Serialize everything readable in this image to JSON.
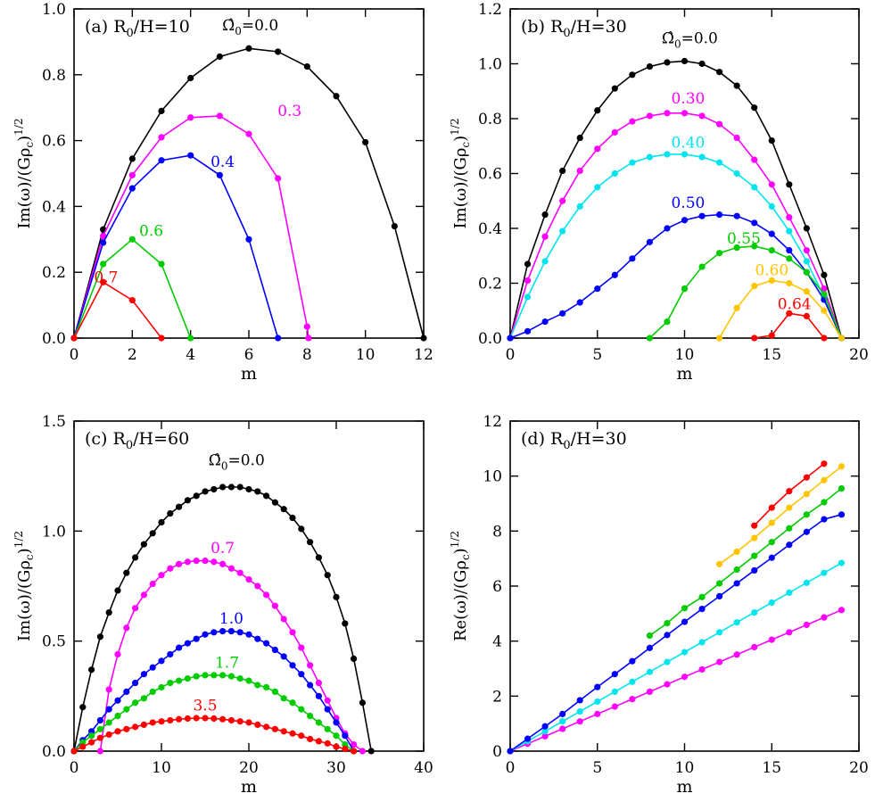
{
  "chart_data": [
    {
      "type": "line",
      "panel_label": "(a) R",
      "ratio_sub": "0",
      "ratio_rest": "/H=10",
      "xlabel": "m",
      "ylabel": "Im(ω)/(Gρc)1/2",
      "xlim": [
        0,
        12
      ],
      "ylim": [
        0,
        1.0
      ],
      "xticks": [
        "0",
        "2",
        "4",
        "6",
        "8",
        "10",
        "12"
      ],
      "yticks": [
        "0.0",
        "0.2",
        "0.4",
        "0.6",
        "0.8",
        "1.0"
      ],
      "series": [
        {
          "name": "Ω̂0=0.0",
          "label_main": "Ω̂",
          "label_sub": "0",
          "label_rest": "=0.0",
          "color": "#000000",
          "x": [
            0,
            1,
            2,
            3,
            4,
            5,
            6,
            7,
            8,
            9,
            10,
            11,
            12
          ],
          "y": [
            0,
            0.33,
            0.545,
            0.69,
            0.79,
            0.855,
            0.88,
            0.87,
            0.825,
            0.735,
            0.595,
            0.34,
            0
          ]
        },
        {
          "name": "0.3",
          "label_main": "0.3",
          "color": "#ff00ff",
          "x": [
            0,
            1,
            2,
            3,
            4,
            5,
            6,
            7,
            8,
            8.05
          ],
          "y": [
            0,
            0.31,
            0.495,
            0.61,
            0.67,
            0.675,
            0.62,
            0.485,
            0.035,
            0
          ]
        },
        {
          "name": "0.4",
          "label_main": "0.4",
          "color": "#0000ff",
          "x": [
            0,
            1,
            2,
            3,
            4,
            5,
            6,
            7
          ],
          "y": [
            0,
            0.29,
            0.455,
            0.54,
            0.555,
            0.495,
            0.3,
            0
          ]
        },
        {
          "name": "0.6",
          "label_main": "0.6",
          "color": "#00cc00",
          "x": [
            0,
            1,
            2,
            3,
            4
          ],
          "y": [
            0,
            0.225,
            0.3,
            0.225,
            0
          ]
        },
        {
          "name": "0.7",
          "label_main": "0.7",
          "color": "#ff0000",
          "x": [
            0,
            1,
            2,
            3
          ],
          "y": [
            0,
            0.17,
            0.115,
            0
          ]
        }
      ]
    },
    {
      "type": "line",
      "panel_label": "(b) R",
      "ratio_sub": "0",
      "ratio_rest": "/H=30",
      "xlabel": "m",
      "ylabel": "Im(ω)/(Gρc)1/2",
      "xlim": [
        0,
        20
      ],
      "ylim": [
        0,
        1.2
      ],
      "xticks": [
        "0",
        "5",
        "10",
        "15",
        "20"
      ],
      "yticks": [
        "0.0",
        "0.2",
        "0.4",
        "0.6",
        "0.8",
        "1.0",
        "1.2"
      ],
      "series": [
        {
          "name": "Ω̂0=0.0",
          "label_main": "Ω̂",
          "label_sub": "0",
          "label_rest": "=0.0",
          "color": "#000000",
          "x": [
            0,
            1,
            2,
            3,
            4,
            5,
            6,
            7,
            8,
            9,
            10,
            11,
            12,
            13,
            14,
            15,
            16,
            17,
            18,
            19
          ],
          "y": [
            0,
            0.27,
            0.45,
            0.61,
            0.73,
            0.83,
            0.91,
            0.96,
            0.99,
            1.005,
            1.01,
            1.0,
            0.97,
            0.92,
            0.84,
            0.72,
            0.56,
            0.4,
            0.23,
            0
          ]
        },
        {
          "name": "0.30",
          "label_main": "0.30",
          "color": "#ff00ff",
          "x": [
            0,
            1,
            2,
            3,
            4,
            5,
            6,
            7,
            8,
            9,
            10,
            11,
            12,
            13,
            14,
            15,
            16,
            17,
            18,
            19
          ],
          "y": [
            0,
            0.21,
            0.37,
            0.5,
            0.61,
            0.69,
            0.75,
            0.79,
            0.81,
            0.82,
            0.82,
            0.81,
            0.78,
            0.73,
            0.65,
            0.56,
            0.44,
            0.32,
            0.18,
            0
          ]
        },
        {
          "name": "0.40",
          "label_main": "0.40",
          "color": "#00e5ee",
          "x": [
            0,
            1,
            2,
            3,
            4,
            5,
            6,
            7,
            8,
            9,
            10,
            11,
            12,
            13,
            14,
            15,
            16,
            17,
            18,
            19
          ],
          "y": [
            0,
            0.15,
            0.28,
            0.39,
            0.48,
            0.55,
            0.6,
            0.64,
            0.66,
            0.67,
            0.67,
            0.66,
            0.64,
            0.6,
            0.55,
            0.48,
            0.39,
            0.28,
            0.15,
            0
          ]
        },
        {
          "name": "0.50",
          "label_main": "0.50",
          "color": "#0000ff",
          "x": [
            0,
            1,
            2,
            3,
            4,
            5,
            6,
            7,
            8,
            9,
            10,
            11,
            12,
            13,
            14,
            15,
            16,
            17,
            18,
            19
          ],
          "y": [
            0,
            0.025,
            0.06,
            0.09,
            0.13,
            0.18,
            0.23,
            0.29,
            0.35,
            0.4,
            0.43,
            0.445,
            0.45,
            0.445,
            0.42,
            0.38,
            0.32,
            0.24,
            0.14,
            0
          ]
        },
        {
          "name": "0.55",
          "label_main": "0.55",
          "color": "#00cc00",
          "x": [
            8,
            9,
            10,
            11,
            12,
            13,
            14,
            15,
            16,
            17,
            18,
            19
          ],
          "y": [
            0,
            0.06,
            0.18,
            0.26,
            0.31,
            0.33,
            0.335,
            0.32,
            0.29,
            0.24,
            0.16,
            0
          ]
        },
        {
          "name": "0.60",
          "label_main": "0.60",
          "color": "#ffc400",
          "x": [
            12,
            13,
            14,
            15,
            16,
            17,
            18,
            19
          ],
          "y": [
            0,
            0.11,
            0.19,
            0.21,
            0.2,
            0.17,
            0.1,
            0
          ]
        },
        {
          "name": "0.64",
          "label_main": "0.64",
          "color": "#ff0000",
          "x": [
            14,
            15,
            16,
            17,
            18
          ],
          "y": [
            0,
            0.01,
            0.09,
            0.08,
            0
          ]
        }
      ]
    },
    {
      "type": "line",
      "panel_label": "(c) R",
      "ratio_sub": "0",
      "ratio_rest": "/H=60",
      "xlabel": "m",
      "ylabel": "Im(ω)/(Gρc)1/2",
      "xlim": [
        0,
        40
      ],
      "ylim": [
        0,
        1.5
      ],
      "xticks": [
        "0",
        "10",
        "20",
        "30",
        "40"
      ],
      "yticks": [
        "0.0",
        "0.5",
        "1.0",
        "1.5"
      ],
      "series": [
        {
          "name": "Ω̂0=0.0",
          "label_main": "Ω̂",
          "label_sub": "0",
          "label_rest": "=0.0",
          "color": "#000000",
          "x": [
            0,
            1,
            2,
            3,
            4,
            5,
            6,
            7,
            8,
            9,
            10,
            11,
            12,
            13,
            14,
            15,
            16,
            17,
            18,
            19,
            20,
            21,
            22,
            23,
            24,
            25,
            26,
            27,
            28,
            29,
            30,
            31,
            32,
            33,
            34
          ],
          "y": [
            0,
            0.2,
            0.37,
            0.52,
            0.63,
            0.73,
            0.81,
            0.88,
            0.94,
            0.99,
            1.04,
            1.08,
            1.11,
            1.14,
            1.16,
            1.18,
            1.19,
            1.2,
            1.2,
            1.2,
            1.19,
            1.18,
            1.16,
            1.13,
            1.1,
            1.06,
            1.01,
            0.95,
            0.88,
            0.8,
            0.7,
            0.58,
            0.42,
            0.22,
            0
          ]
        },
        {
          "name": "0.7",
          "label_main": "0.7",
          "color": "#ff00ff",
          "x": [
            3,
            4,
            5,
            6,
            7,
            8,
            9,
            10,
            11,
            12,
            13,
            14,
            15,
            16,
            17,
            18,
            19,
            20,
            21,
            22,
            23,
            24,
            25,
            26,
            27,
            28,
            29,
            30,
            31,
            32,
            33
          ],
          "y": [
            0,
            0.28,
            0.44,
            0.56,
            0.65,
            0.71,
            0.76,
            0.8,
            0.83,
            0.85,
            0.86,
            0.865,
            0.865,
            0.86,
            0.85,
            0.83,
            0.81,
            0.78,
            0.75,
            0.71,
            0.66,
            0.6,
            0.54,
            0.47,
            0.39,
            0.31,
            0.23,
            0.15,
            0.08,
            0.03,
            0
          ]
        },
        {
          "name": "1.0",
          "label_main": "1.0",
          "color": "#0000ff",
          "x": [
            0,
            1,
            2,
            3,
            4,
            5,
            6,
            7,
            8,
            9,
            10,
            11,
            12,
            13,
            14,
            15,
            16,
            17,
            18,
            19,
            20,
            21,
            22,
            23,
            24,
            25,
            26,
            27,
            28,
            29,
            30,
            31,
            32
          ],
          "y": [
            0,
            0.05,
            0.09,
            0.14,
            0.19,
            0.23,
            0.27,
            0.31,
            0.35,
            0.38,
            0.41,
            0.44,
            0.47,
            0.49,
            0.51,
            0.53,
            0.54,
            0.545,
            0.545,
            0.54,
            0.53,
            0.51,
            0.49,
            0.46,
            0.43,
            0.39,
            0.35,
            0.3,
            0.25,
            0.19,
            0.13,
            0.07,
            0
          ]
        },
        {
          "name": "1.7",
          "label_main": "1.7",
          "color": "#00cc00",
          "x": [
            0,
            1,
            2,
            3,
            4,
            5,
            6,
            7,
            8,
            9,
            10,
            11,
            12,
            13,
            14,
            15,
            16,
            17,
            18,
            19,
            20,
            21,
            22,
            23,
            24,
            25,
            26,
            27,
            28,
            29,
            30,
            31,
            32
          ],
          "y": [
            0,
            0.04,
            0.07,
            0.1,
            0.13,
            0.16,
            0.19,
            0.22,
            0.24,
            0.27,
            0.29,
            0.31,
            0.32,
            0.33,
            0.34,
            0.345,
            0.345,
            0.345,
            0.34,
            0.33,
            0.32,
            0.3,
            0.29,
            0.27,
            0.24,
            0.22,
            0.19,
            0.16,
            0.13,
            0.1,
            0.07,
            0.03,
            0
          ]
        },
        {
          "name": "3.5",
          "label_main": "3.5",
          "color": "#ff0000",
          "x": [
            0,
            1,
            2,
            3,
            4,
            5,
            6,
            7,
            8,
            9,
            10,
            11,
            12,
            13,
            14,
            15,
            16,
            17,
            18,
            19,
            20,
            21,
            22,
            23,
            24,
            25,
            26,
            27,
            28,
            29,
            30,
            31,
            32
          ],
          "y": [
            0,
            0.02,
            0.04,
            0.06,
            0.075,
            0.09,
            0.1,
            0.11,
            0.12,
            0.13,
            0.135,
            0.14,
            0.145,
            0.148,
            0.15,
            0.15,
            0.148,
            0.145,
            0.14,
            0.135,
            0.13,
            0.12,
            0.11,
            0.1,
            0.09,
            0.08,
            0.07,
            0.055,
            0.045,
            0.035,
            0.02,
            0.01,
            0
          ]
        }
      ]
    },
    {
      "type": "line",
      "panel_label": "(d) R",
      "ratio_sub": "0",
      "ratio_rest": "/H=30",
      "xlabel": "m",
      "ylabel": "Re(ω)/(Gρc)1/2",
      "xlim": [
        0,
        20
      ],
      "ylim": [
        0,
        12
      ],
      "xticks": [
        "0",
        "5",
        "10",
        "15",
        "20"
      ],
      "yticks": [
        "0",
        "2",
        "4",
        "6",
        "8",
        "10",
        "12"
      ],
      "series": [
        {
          "color": "#ff00ff",
          "x": [
            0,
            1,
            2,
            3,
            4,
            5,
            6,
            7,
            8,
            9,
            10,
            11,
            12,
            13,
            14,
            15,
            16,
            17,
            18,
            19
          ],
          "y": [
            0,
            0.27,
            0.54,
            0.81,
            1.08,
            1.35,
            1.62,
            1.89,
            2.16,
            2.43,
            2.7,
            2.97,
            3.24,
            3.51,
            3.78,
            4.05,
            4.32,
            4.59,
            4.86,
            5.13
          ]
        },
        {
          "color": "#00e5ee",
          "x": [
            0,
            1,
            2,
            3,
            4,
            5,
            6,
            7,
            8,
            9,
            10,
            11,
            12,
            13,
            14,
            15,
            16,
            17,
            18,
            19
          ],
          "y": [
            0,
            0.36,
            0.72,
            1.08,
            1.44,
            1.8,
            2.16,
            2.52,
            2.88,
            3.24,
            3.6,
            3.96,
            4.32,
            4.68,
            5.04,
            5.4,
            5.76,
            6.12,
            6.48,
            6.84
          ]
        },
        {
          "color": "#0000ff",
          "x": [
            0,
            1,
            2,
            3,
            4,
            5,
            6,
            7,
            8,
            9,
            10,
            11,
            12,
            13,
            14,
            15,
            16,
            17,
            18,
            19
          ],
          "y": [
            0,
            0.45,
            0.9,
            1.35,
            1.85,
            2.33,
            2.8,
            3.27,
            3.75,
            4.22,
            4.7,
            5.17,
            5.63,
            6.1,
            6.57,
            7.03,
            7.5,
            7.97,
            8.43,
            8.6
          ]
        },
        {
          "color": "#00cc00",
          "x": [
            8,
            9,
            10,
            11,
            12,
            13,
            14,
            15,
            16,
            17,
            18,
            19
          ],
          "y": [
            4.2,
            4.65,
            5.2,
            5.6,
            6.1,
            6.6,
            7.1,
            7.6,
            8.1,
            8.6,
            9.05,
            9.55
          ]
        },
        {
          "color": "#ffc400",
          "x": [
            12,
            13,
            14,
            15,
            16,
            17,
            18,
            19
          ],
          "y": [
            6.8,
            7.25,
            7.75,
            8.3,
            8.85,
            9.35,
            9.85,
            10.35
          ]
        },
        {
          "color": "#ff0000",
          "x": [
            14,
            15,
            16,
            17,
            18
          ],
          "y": [
            8.2,
            8.85,
            9.45,
            9.95,
            10.45
          ]
        }
      ]
    }
  ]
}
